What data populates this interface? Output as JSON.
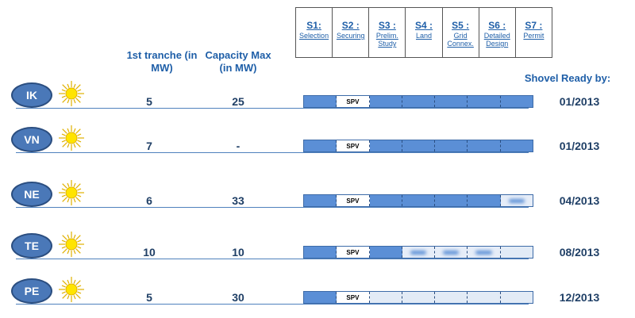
{
  "stages": [
    {
      "code": "S1:",
      "name": "Selection"
    },
    {
      "code": "S2 :",
      "name": "Securing"
    },
    {
      "code": "S3 :",
      "name": "Prelim. Study"
    },
    {
      "code": "S4 :",
      "name": "Land"
    },
    {
      "code": "S5 :",
      "name": "Grid Connex."
    },
    {
      "code": "S6 :",
      "name": "Detailed Design"
    },
    {
      "code": "S7 :",
      "name": "Permit"
    }
  ],
  "headers": {
    "tranche": "1st tranche (in MW)",
    "capacity": "Capacity Max (in MW)",
    "shovel": "Shovel Ready by:"
  },
  "spv_label": "SPV",
  "colors": {
    "done": "#5b8fd6",
    "todo": "#e2ebf6",
    "oval": "#4a78b8",
    "sun": "#ffe400"
  },
  "projects": [
    {
      "code": "IK",
      "tranche": "5",
      "capacity": "25",
      "date": "01/2013",
      "status": [
        "done",
        "spv",
        "done",
        "done",
        "done",
        "done",
        "done"
      ]
    },
    {
      "code": "VN",
      "tranche": "7",
      "capacity": "-",
      "date": "01/2013",
      "status": [
        "done",
        "spv",
        "done",
        "done",
        "done",
        "done",
        "done"
      ]
    },
    {
      "code": "NE",
      "tranche": "6",
      "capacity": "33",
      "date": "04/2013",
      "status": [
        "done",
        "spv",
        "done",
        "done",
        "done",
        "done",
        "ongoing"
      ]
    },
    {
      "code": "TE",
      "tranche": "10",
      "capacity": "10",
      "date": "08/2013",
      "status": [
        "done",
        "spv",
        "done",
        "ongoing",
        "ongoing",
        "ongoing",
        "todo"
      ]
    },
    {
      "code": "PE",
      "tranche": "5",
      "capacity": "30",
      "date": "12/2013",
      "status": [
        "done",
        "spv",
        "todo",
        "todo",
        "todo",
        "todo",
        "todo"
      ]
    }
  ]
}
